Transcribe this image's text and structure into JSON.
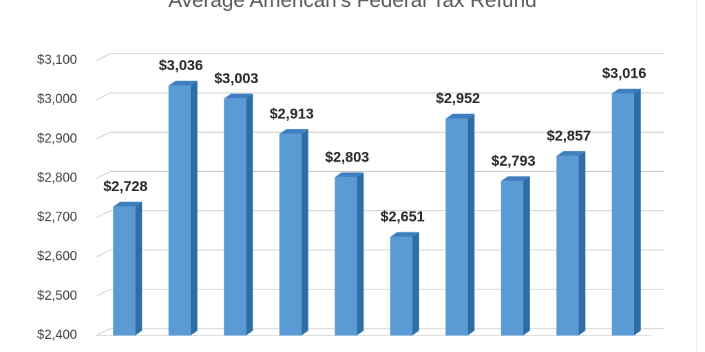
{
  "chart_data": {
    "type": "bar3d",
    "title": "Average American's Federal Tax Refund",
    "categories": [
      null,
      null,
      null,
      null,
      null,
      null,
      null,
      null,
      null,
      null
    ],
    "values": [
      2728,
      3036,
      3003,
      2913,
      2803,
      2651,
      2952,
      2793,
      2857,
      3016
    ],
    "value_labels": [
      "$2,728",
      "$3,036",
      "$3,003",
      "$2,913",
      "$2,803",
      "$2,651",
      "$2,952",
      "$2,793",
      "$2,857",
      "$3,016"
    ],
    "color": "#5b9bd5",
    "ylim": [
      2400,
      3100
    ],
    "yticks": [
      {
        "value": 2400,
        "label": "$2,400"
      },
      {
        "value": 2500,
        "label": "$2,500"
      },
      {
        "value": 2600,
        "label": "$2,600"
      },
      {
        "value": 2700,
        "label": "$2,700"
      },
      {
        "value": 2800,
        "label": "$2,800"
      },
      {
        "value": 2900,
        "label": "$2,900"
      },
      {
        "value": 3000,
        "label": "$3,000"
      },
      {
        "value": 3100,
        "label": "$3,100"
      }
    ],
    "grid": true
  }
}
